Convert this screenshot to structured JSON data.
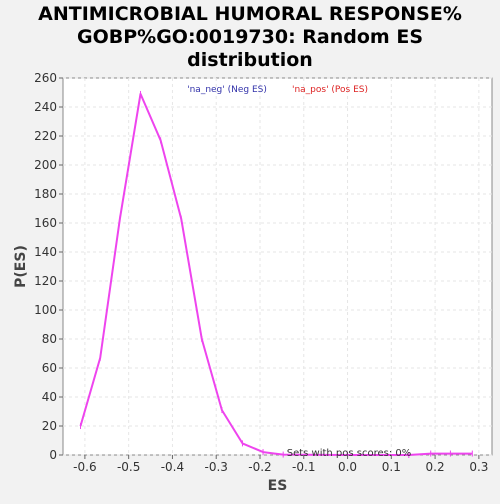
{
  "chart_data": {
    "type": "line",
    "title_lines": [
      "ANTIMICROBIAL HUMORAL RESPONSE%",
      "GOBP%GO:0019730: Random ES",
      "distribution"
    ],
    "xlabel": "ES",
    "ylabel": "P(ES)",
    "xlim": [
      -0.65,
      0.33
    ],
    "ylim": [
      0,
      260
    ],
    "x_ticks": [
      -0.6,
      -0.5,
      -0.4,
      -0.3,
      -0.2,
      -0.1,
      0.0,
      0.1,
      0.2,
      0.3
    ],
    "x_tick_labels": [
      "-0.6",
      "-0.5",
      "-0.4",
      "-0.3",
      "-0.2",
      "-0.1",
      "0.0",
      "0.1",
      "0.2",
      "0.3"
    ],
    "y_ticks": [
      0,
      20,
      40,
      60,
      80,
      100,
      120,
      140,
      160,
      180,
      200,
      220,
      240,
      260
    ],
    "y_tick_labels": [
      "0",
      "20",
      "40",
      "60",
      "80",
      "100",
      "120",
      "140",
      "160",
      "180",
      "200",
      "220",
      "240",
      "260"
    ],
    "grid": true,
    "legend": [
      {
        "label": "'na_neg' (Neg ES)",
        "color": "#3333aa"
      },
      {
        "label": "'na_pos' (Pos ES)",
        "color": "#dd2222"
      }
    ],
    "annotation": "Sets with pos scores: 0%",
    "series": [
      {
        "color": "#ee44ee",
        "x": [
          -0.61,
          -0.565,
          -0.52,
          -0.473,
          -0.427,
          -0.38,
          -0.333,
          -0.287,
          -0.24,
          -0.193,
          -0.147,
          0.0,
          0.14,
          0.19,
          0.235,
          0.285
        ],
        "y": [
          20,
          67,
          163,
          249,
          217,
          163,
          80,
          31,
          8,
          2,
          0.3,
          0,
          0,
          1,
          1,
          1
        ]
      }
    ]
  }
}
